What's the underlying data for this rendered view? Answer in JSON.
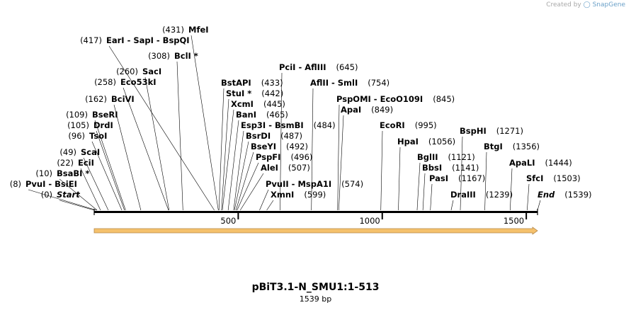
{
  "credit": {
    "prefix": "Created by",
    "brand": "SnapGene"
  },
  "map": {
    "title": "pBiT3.1-N_SMU1:1-513",
    "length_label": "1539 bp",
    "total_bp": 1539,
    "ticks": [
      {
        "bp": 500,
        "label": "500"
      },
      {
        "bp": 1000,
        "label": "1000"
      },
      {
        "bp": 1500,
        "label": "1500"
      }
    ],
    "feature": {
      "name": "feature-arrow",
      "start": 0,
      "end": 1539,
      "color": "#f5c16c"
    }
  },
  "sites": [
    {
      "pos": 0,
      "pos_label": "(0)",
      "label": "Start",
      "italic": true
    },
    {
      "pos": 8,
      "pos_label": "(8)",
      "label": "PvuI  - BsiEI"
    },
    {
      "pos": 10,
      "pos_label": "(10)",
      "label": "BsaBI *"
    },
    {
      "pos": 22,
      "pos_label": "(22)",
      "label": "EciI"
    },
    {
      "pos": 49,
      "pos_label": "(49)",
      "label": "ScaI"
    },
    {
      "pos": 96,
      "pos_label": "(96)",
      "label": "TsoI"
    },
    {
      "pos": 105,
      "pos_label": "(105)",
      "label": "DrdI"
    },
    {
      "pos": 109,
      "pos_label": "(109)",
      "label": "BseRI"
    },
    {
      "pos": 162,
      "pos_label": "(162)",
      "label": "BciVI"
    },
    {
      "pos": 258,
      "pos_label": "(258)",
      "label": "Eco53kI"
    },
    {
      "pos": 260,
      "pos_label": "(260)",
      "label": "SacI"
    },
    {
      "pos": 308,
      "pos_label": "(308)",
      "label": "BclI *"
    },
    {
      "pos": 417,
      "pos_label": "(417)",
      "label": "EarI  - SapI  - BspQI"
    },
    {
      "pos": 431,
      "pos_label": "(431)",
      "label": "MfeI"
    },
    {
      "pos": 433,
      "pos_label": "(433)",
      "label": "BstAPI"
    },
    {
      "pos": 442,
      "pos_label": "(442)",
      "label": "StuI *"
    },
    {
      "pos": 445,
      "pos_label": "(445)",
      "label": "XcmI"
    },
    {
      "pos": 465,
      "pos_label": "(465)",
      "label": "BanI"
    },
    {
      "pos": 484,
      "pos_label": "(484)",
      "label": "Esp3I  - BsmBI"
    },
    {
      "pos": 487,
      "pos_label": "(487)",
      "label": "BsrDI"
    },
    {
      "pos": 492,
      "pos_label": "(492)",
      "label": "BseYI"
    },
    {
      "pos": 496,
      "pos_label": "(496)",
      "label": "PspFI"
    },
    {
      "pos": 507,
      "pos_label": "(507)",
      "label": "AleI"
    },
    {
      "pos": 574,
      "pos_label": "(574)",
      "label": "PvuII  - MspA1I"
    },
    {
      "pos": 599,
      "pos_label": "(599)",
      "label": "XmnI"
    },
    {
      "pos": 645,
      "pos_label": "(645)",
      "label": "PciI  - AflIII"
    },
    {
      "pos": 754,
      "pos_label": "(754)",
      "label": "AflII  - SmlI"
    },
    {
      "pos": 845,
      "pos_label": "(845)",
      "label": "PspOMI  - EcoO109I"
    },
    {
      "pos": 849,
      "pos_label": "(849)",
      "label": "ApaI"
    },
    {
      "pos": 995,
      "pos_label": "(995)",
      "label": "EcoRI"
    },
    {
      "pos": 1056,
      "pos_label": "(1056)",
      "label": "HpaI"
    },
    {
      "pos": 1121,
      "pos_label": "(1121)",
      "label": "BglII"
    },
    {
      "pos": 1141,
      "pos_label": "(1141)",
      "label": "BbsI"
    },
    {
      "pos": 1167,
      "pos_label": "(1167)",
      "label": "PasI"
    },
    {
      "pos": 1239,
      "pos_label": "(1239)",
      "label": "DraIII"
    },
    {
      "pos": 1271,
      "pos_label": "(1271)",
      "label": "BspHI"
    },
    {
      "pos": 1356,
      "pos_label": "(1356)",
      "label": "BtgI"
    },
    {
      "pos": 1444,
      "pos_label": "(1444)",
      "label": "ApaLI"
    },
    {
      "pos": 1503,
      "pos_label": "(1503)",
      "label": "SfcI"
    },
    {
      "pos": 1539,
      "pos_label": "(1539)",
      "label": "End",
      "italic": true
    }
  ]
}
